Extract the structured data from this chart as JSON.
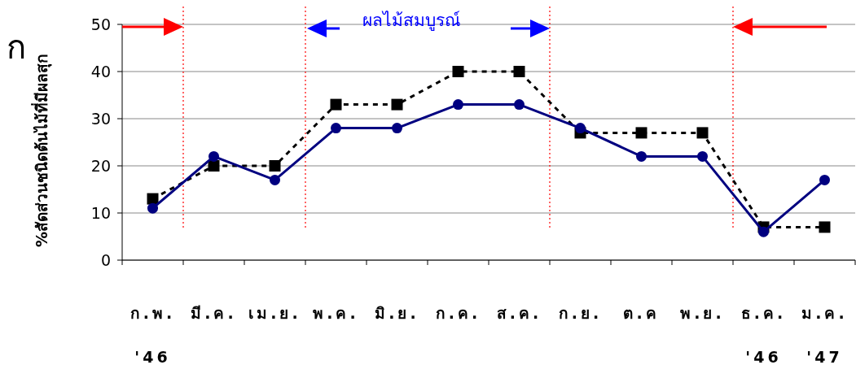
{
  "chart_data": {
    "type": "line",
    "ylabel": "%สัดส่วนชนิดต้นไม้ที่มีผลสุก",
    "categories": [
      "ก.พ.\n'46",
      "มี.ค.",
      "เม.ย.",
      "พ.ค.",
      "มิ.ย.",
      "ก.ค.",
      "ส.ค.",
      "ก.ย.",
      "ต.ค",
      "พ.ย.",
      "ธ.ค.\n'46",
      "ม.ค.\n'47"
    ],
    "series": [
      {
        "color": "#000080",
        "marker": "circle",
        "line_style": "solid",
        "values": [
          11,
          22,
          17,
          28,
          28,
          33,
          33,
          28,
          22,
          22,
          6,
          17
        ]
      },
      {
        "color": "#000000",
        "marker": "square",
        "line_style": "dashed",
        "values": [
          13,
          20,
          20,
          33,
          33,
          40,
          40,
          27,
          27,
          27,
          7,
          7
        ]
      }
    ],
    "ylim": [
      0,
      50
    ],
    "yticks": [
      0,
      10,
      20,
      30,
      40,
      50
    ],
    "grid": "y",
    "annotations": [
      "ก",
      "ผลไม้สมบูรณ์"
    ]
  }
}
